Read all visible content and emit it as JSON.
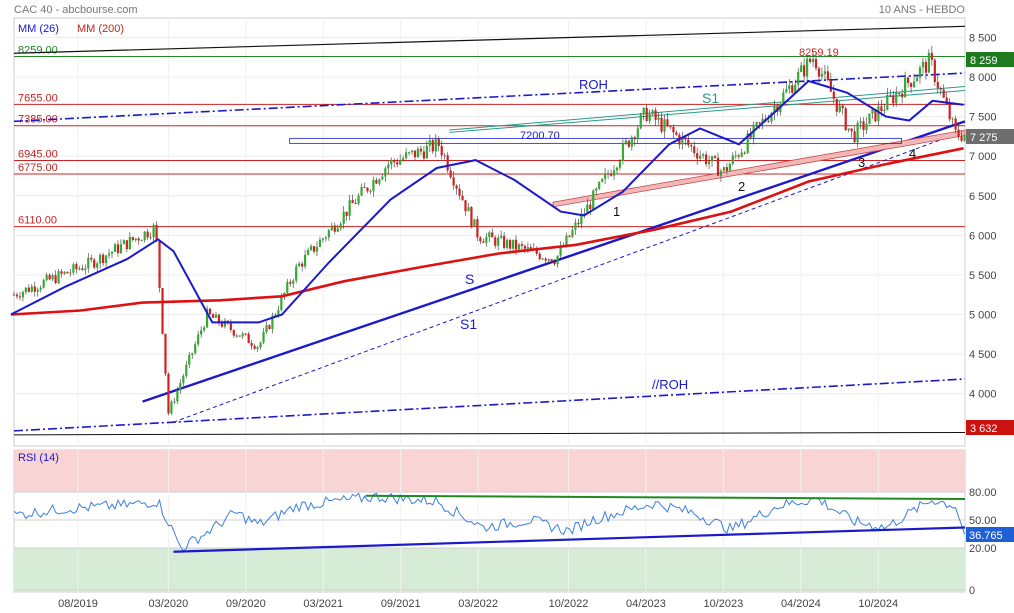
{
  "header": {
    "symbol_source": "CAC 40 - abcbourse.com",
    "period": "10 ANS - HEBDO",
    "legend_ma26": "MM (26)",
    "legend_ma200": "MM (200)"
  },
  "colors": {
    "candle_up": "#33aa33",
    "candle_down": "#cc2222",
    "ma26": "#1a1acc",
    "ma200": "#dd1111",
    "level_line": "#cc2222",
    "trend_blue": "#1a1acc",
    "channel_black": "#111111",
    "rsi_line": "#3b7fe0",
    "rsi_band_high": "#f8d4d4",
    "rsi_band_low": "#d6ecd6",
    "rsi_res": "#228822",
    "s1_channel": "#2a9a8a",
    "support_fill": "#f0b8b8"
  },
  "price_levels": [
    {
      "label": "8259.00",
      "value": 8259,
      "color": "#228822"
    },
    {
      "label": "7655.00",
      "value": 7655,
      "color": "#cc2222"
    },
    {
      "label": "7385.00",
      "value": 7385,
      "color": "#cc2222"
    },
    {
      "label": "6945.00",
      "value": 6945,
      "color": "#cc2222"
    },
    {
      "label": "6775.00",
      "value": 6775,
      "color": "#cc2222"
    },
    {
      "label": "6110.00",
      "value": 6110,
      "color": "#cc2222"
    }
  ],
  "annotations": {
    "peak": "8259.19",
    "box": "7200.70",
    "roh": "ROH",
    "roh_parallel": "//ROH",
    "s1_top": "S1",
    "s_label": "S",
    "s1_label": "S1",
    "p1": "1",
    "p2": "2",
    "p3": "3",
    "p4": "4"
  },
  "right_tags": {
    "top": "8 259",
    "last": "7 275",
    "low": "3 632",
    "rsi": "36.765"
  },
  "rsi_title": "RSI (14)",
  "chart_data": [
    {
      "type": "candlestick",
      "title": "CAC 40",
      "frequency": "weekly",
      "y_ticks": [
        "8 500",
        "8 000",
        "7 500",
        "7 000",
        "6 500",
        "6 000",
        "5 500",
        "5 000",
        "4 500",
        "4 000"
      ],
      "x_ticks": [
        "08/2019",
        "03/2020",
        "09/2020",
        "03/2021",
        "09/2021",
        "03/2022",
        "10/2022",
        "04/2023",
        "10/2023",
        "04/2024",
        "10/2024"
      ],
      "ylim": [
        3450,
        8650
      ],
      "key_points": [
        {
          "date": "2019-03",
          "close": 5250
        },
        {
          "date": "2019-09",
          "close": 5650
        },
        {
          "date": "2020-02",
          "close": 6100
        },
        {
          "date": "2020-03",
          "close": 3754
        },
        {
          "date": "2020-06",
          "close": 5000
        },
        {
          "date": "2020-10",
          "close": 4600
        },
        {
          "date": "2021-01",
          "close": 5600
        },
        {
          "date": "2021-08",
          "close": 6900
        },
        {
          "date": "2021-12",
          "close": 7150
        },
        {
          "date": "2022-03",
          "close": 6000
        },
        {
          "date": "2022-09",
          "close": 5700
        },
        {
          "date": "2023-04",
          "close": 7550
        },
        {
          "date": "2023-10",
          "close": 6800
        },
        {
          "date": "2024-05",
          "close": 8259
        },
        {
          "date": "2024-08",
          "close": 7250
        },
        {
          "date": "2025-02",
          "close": 8200
        },
        {
          "date": "2025-04",
          "close": 7275
        }
      ],
      "series": [
        {
          "name": "MM (26)",
          "points": [
            [
              2019.15,
              5000
            ],
            [
              2019.5,
              5350
            ],
            [
              2019.9,
              5700
            ],
            [
              2020.1,
              5950
            ],
            [
              2020.2,
              5800
            ],
            [
              2020.45,
              4900
            ],
            [
              2020.75,
              4900
            ],
            [
              2020.9,
              5000
            ],
            [
              2021.2,
              5650
            ],
            [
              2021.6,
              6450
            ],
            [
              2021.9,
              6850
            ],
            [
              2022.15,
              6950
            ],
            [
              2022.4,
              6700
            ],
            [
              2022.7,
              6300
            ],
            [
              2022.85,
              6250
            ],
            [
              2023.1,
              6550
            ],
            [
              2023.4,
              7150
            ],
            [
              2023.6,
              7350
            ],
            [
              2023.85,
              7150
            ],
            [
              2024.05,
              7500
            ],
            [
              2024.3,
              7950
            ],
            [
              2024.55,
              7800
            ],
            [
              2024.8,
              7500
            ],
            [
              2024.95,
              7450
            ],
            [
              2025.1,
              7700
            ],
            [
              2025.3,
              7650
            ]
          ]
        },
        {
          "name": "MM (200)",
          "points": [
            [
              2019.15,
              5000
            ],
            [
              2019.6,
              5050
            ],
            [
              2020.0,
              5150
            ],
            [
              2020.5,
              5180
            ],
            [
              2020.9,
              5230
            ],
            [
              2021.3,
              5420
            ],
            [
              2021.8,
              5600
            ],
            [
              2022.3,
              5770
            ],
            [
              2022.8,
              5880
            ],
            [
              2023.3,
              6070
            ],
            [
              2023.8,
              6300
            ],
            [
              2024.3,
              6680
            ],
            [
              2024.8,
              6900
            ],
            [
              2025.3,
              7100
            ]
          ]
        }
      ]
    },
    {
      "type": "line",
      "title": "RSI (14)",
      "y_ticks": [
        "80.00",
        "50.00",
        "20.00",
        "0"
      ],
      "ylim": [
        0,
        100
      ],
      "series": [
        {
          "name": "RSI (14)",
          "points": [
            [
              2019.15,
              55
            ],
            [
              2019.5,
              62
            ],
            [
              2019.9,
              66
            ],
            [
              2020.1,
              70
            ],
            [
              2020.25,
              20
            ],
            [
              2020.4,
              35
            ],
            [
              2020.6,
              58
            ],
            [
              2020.75,
              45
            ],
            [
              2021.0,
              65
            ],
            [
              2021.5,
              75
            ],
            [
              2021.9,
              70
            ],
            [
              2022.2,
              42
            ],
            [
              2022.5,
              50
            ],
            [
              2022.75,
              38
            ],
            [
              2022.9,
              50
            ],
            [
              2023.3,
              68
            ],
            [
              2023.55,
              58
            ],
            [
              2023.8,
              40
            ],
            [
              2024.1,
              65
            ],
            [
              2024.35,
              73
            ],
            [
              2024.6,
              48
            ],
            [
              2024.8,
              42
            ],
            [
              2025.1,
              72
            ],
            [
              2025.25,
              65
            ],
            [
              2025.3,
              36.765
            ]
          ]
        }
      ]
    }
  ]
}
